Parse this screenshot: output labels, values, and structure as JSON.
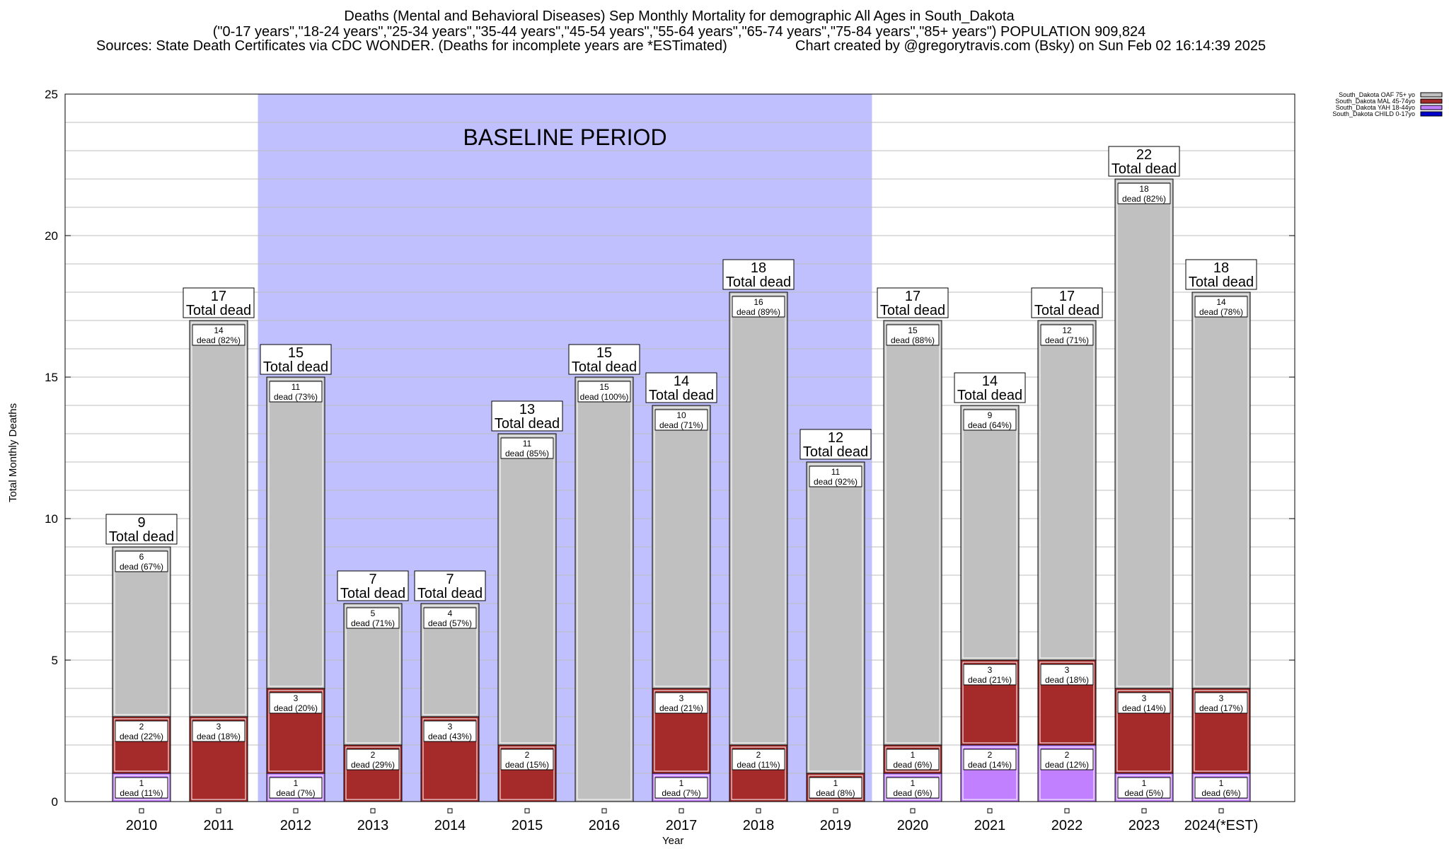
{
  "header": {
    "title_line1": "Deaths (Mental and Behavioral Diseases) Sep Monthly Mortality for demographic All Ages in South_Dakota",
    "title_line2": "(\"0-17 years\",\"18-24 years\",\"25-34 years\",\"35-44 years\",\"45-54 years\",\"55-64 years\",\"65-74 years\",\"75-84 years\",\"85+ years\") POPULATION 909,824",
    "sources": "Sources: State Death Certificates via CDC WONDER. (Deaths for incomplete years are *ESTimated)",
    "credit": "Chart created by @gregorytravis.com (Bsky) on Sun Feb 02 16:14:39 2025"
  },
  "chart_data": {
    "type": "bar",
    "stacked": true,
    "ylabel": "Total Monthly Deaths",
    "xlabel": "Year",
    "ylim": [
      0,
      25
    ],
    "yticks": [
      0,
      5,
      10,
      15,
      20,
      25
    ],
    "grid": true,
    "legend_position": "top-right",
    "categories": [
      "2010",
      "2011",
      "2012",
      "2013",
      "2014",
      "2015",
      "2016",
      "2017",
      "2018",
      "2019",
      "2020",
      "2021",
      "2022",
      "2023",
      "2024(*EST)"
    ],
    "series": [
      {
        "name": "South_Dakota CHILD 0-17yo",
        "color": "#0000cc",
        "values": [
          0,
          0,
          0,
          0,
          0,
          0,
          0,
          0,
          0,
          0,
          0,
          0,
          0,
          0,
          0
        ],
        "labels": [
          "",
          "",
          "",
          "",
          "",
          "",
          "",
          "",
          "",
          "",
          "",
          "",
          "",
          "",
          ""
        ]
      },
      {
        "name": "South_Dakota YAH 18-44yo",
        "color": "#c080ff",
        "values": [
          1,
          0,
          1,
          0,
          0,
          0,
          0,
          1,
          0,
          0,
          1,
          2,
          2,
          1,
          1
        ],
        "labels": [
          "dead (11%)",
          "",
          "dead (7%)",
          "",
          "",
          "",
          "",
          "dead (7%)",
          "",
          "",
          "dead (6%)",
          "dead (14%)",
          "dead (12%)",
          "dead (5%)",
          "dead (6%)"
        ]
      },
      {
        "name": "South_Dakota MAL 45-74yo",
        "color": "#a52a2a",
        "values": [
          2,
          3,
          3,
          2,
          3,
          2,
          0,
          3,
          2,
          1,
          1,
          3,
          3,
          3,
          3
        ],
        "labels": [
          "dead (22%)",
          "dead (18%)",
          "dead (20%)",
          "dead (29%)",
          "dead (43%)",
          "dead (15%)",
          "",
          "dead (21%)",
          "dead (11%)",
          "dead (8%)",
          "dead (6%)",
          "dead (21%)",
          "dead (18%)",
          "dead (14%)",
          "dead (17%)"
        ]
      },
      {
        "name": "South_Dakota OAF 75+ yo",
        "color": "#c0c0c0",
        "values": [
          6,
          14,
          11,
          5,
          4,
          11,
          15,
          10,
          16,
          11,
          15,
          9,
          12,
          18,
          14
        ],
        "labels": [
          "dead (67%)",
          "dead (82%)",
          "dead (73%)",
          "dead (71%)",
          "dead (57%)",
          "dead (85%)",
          "dead (100%)",
          "dead (71%)",
          "dead (89%)",
          "dead (92%)",
          "dead (88%)",
          "dead (64%)",
          "dead (71%)",
          "dead (82%)",
          "dead (78%)"
        ]
      }
    ],
    "totals": [
      9,
      17,
      15,
      7,
      7,
      13,
      15,
      14,
      18,
      12,
      17,
      14,
      17,
      22,
      18
    ],
    "total_suffix": "Total dead",
    "baseline": {
      "label": "BASELINE PERIOD",
      "from": "2012",
      "to": "2019",
      "color": "#c0c0ff"
    }
  }
}
